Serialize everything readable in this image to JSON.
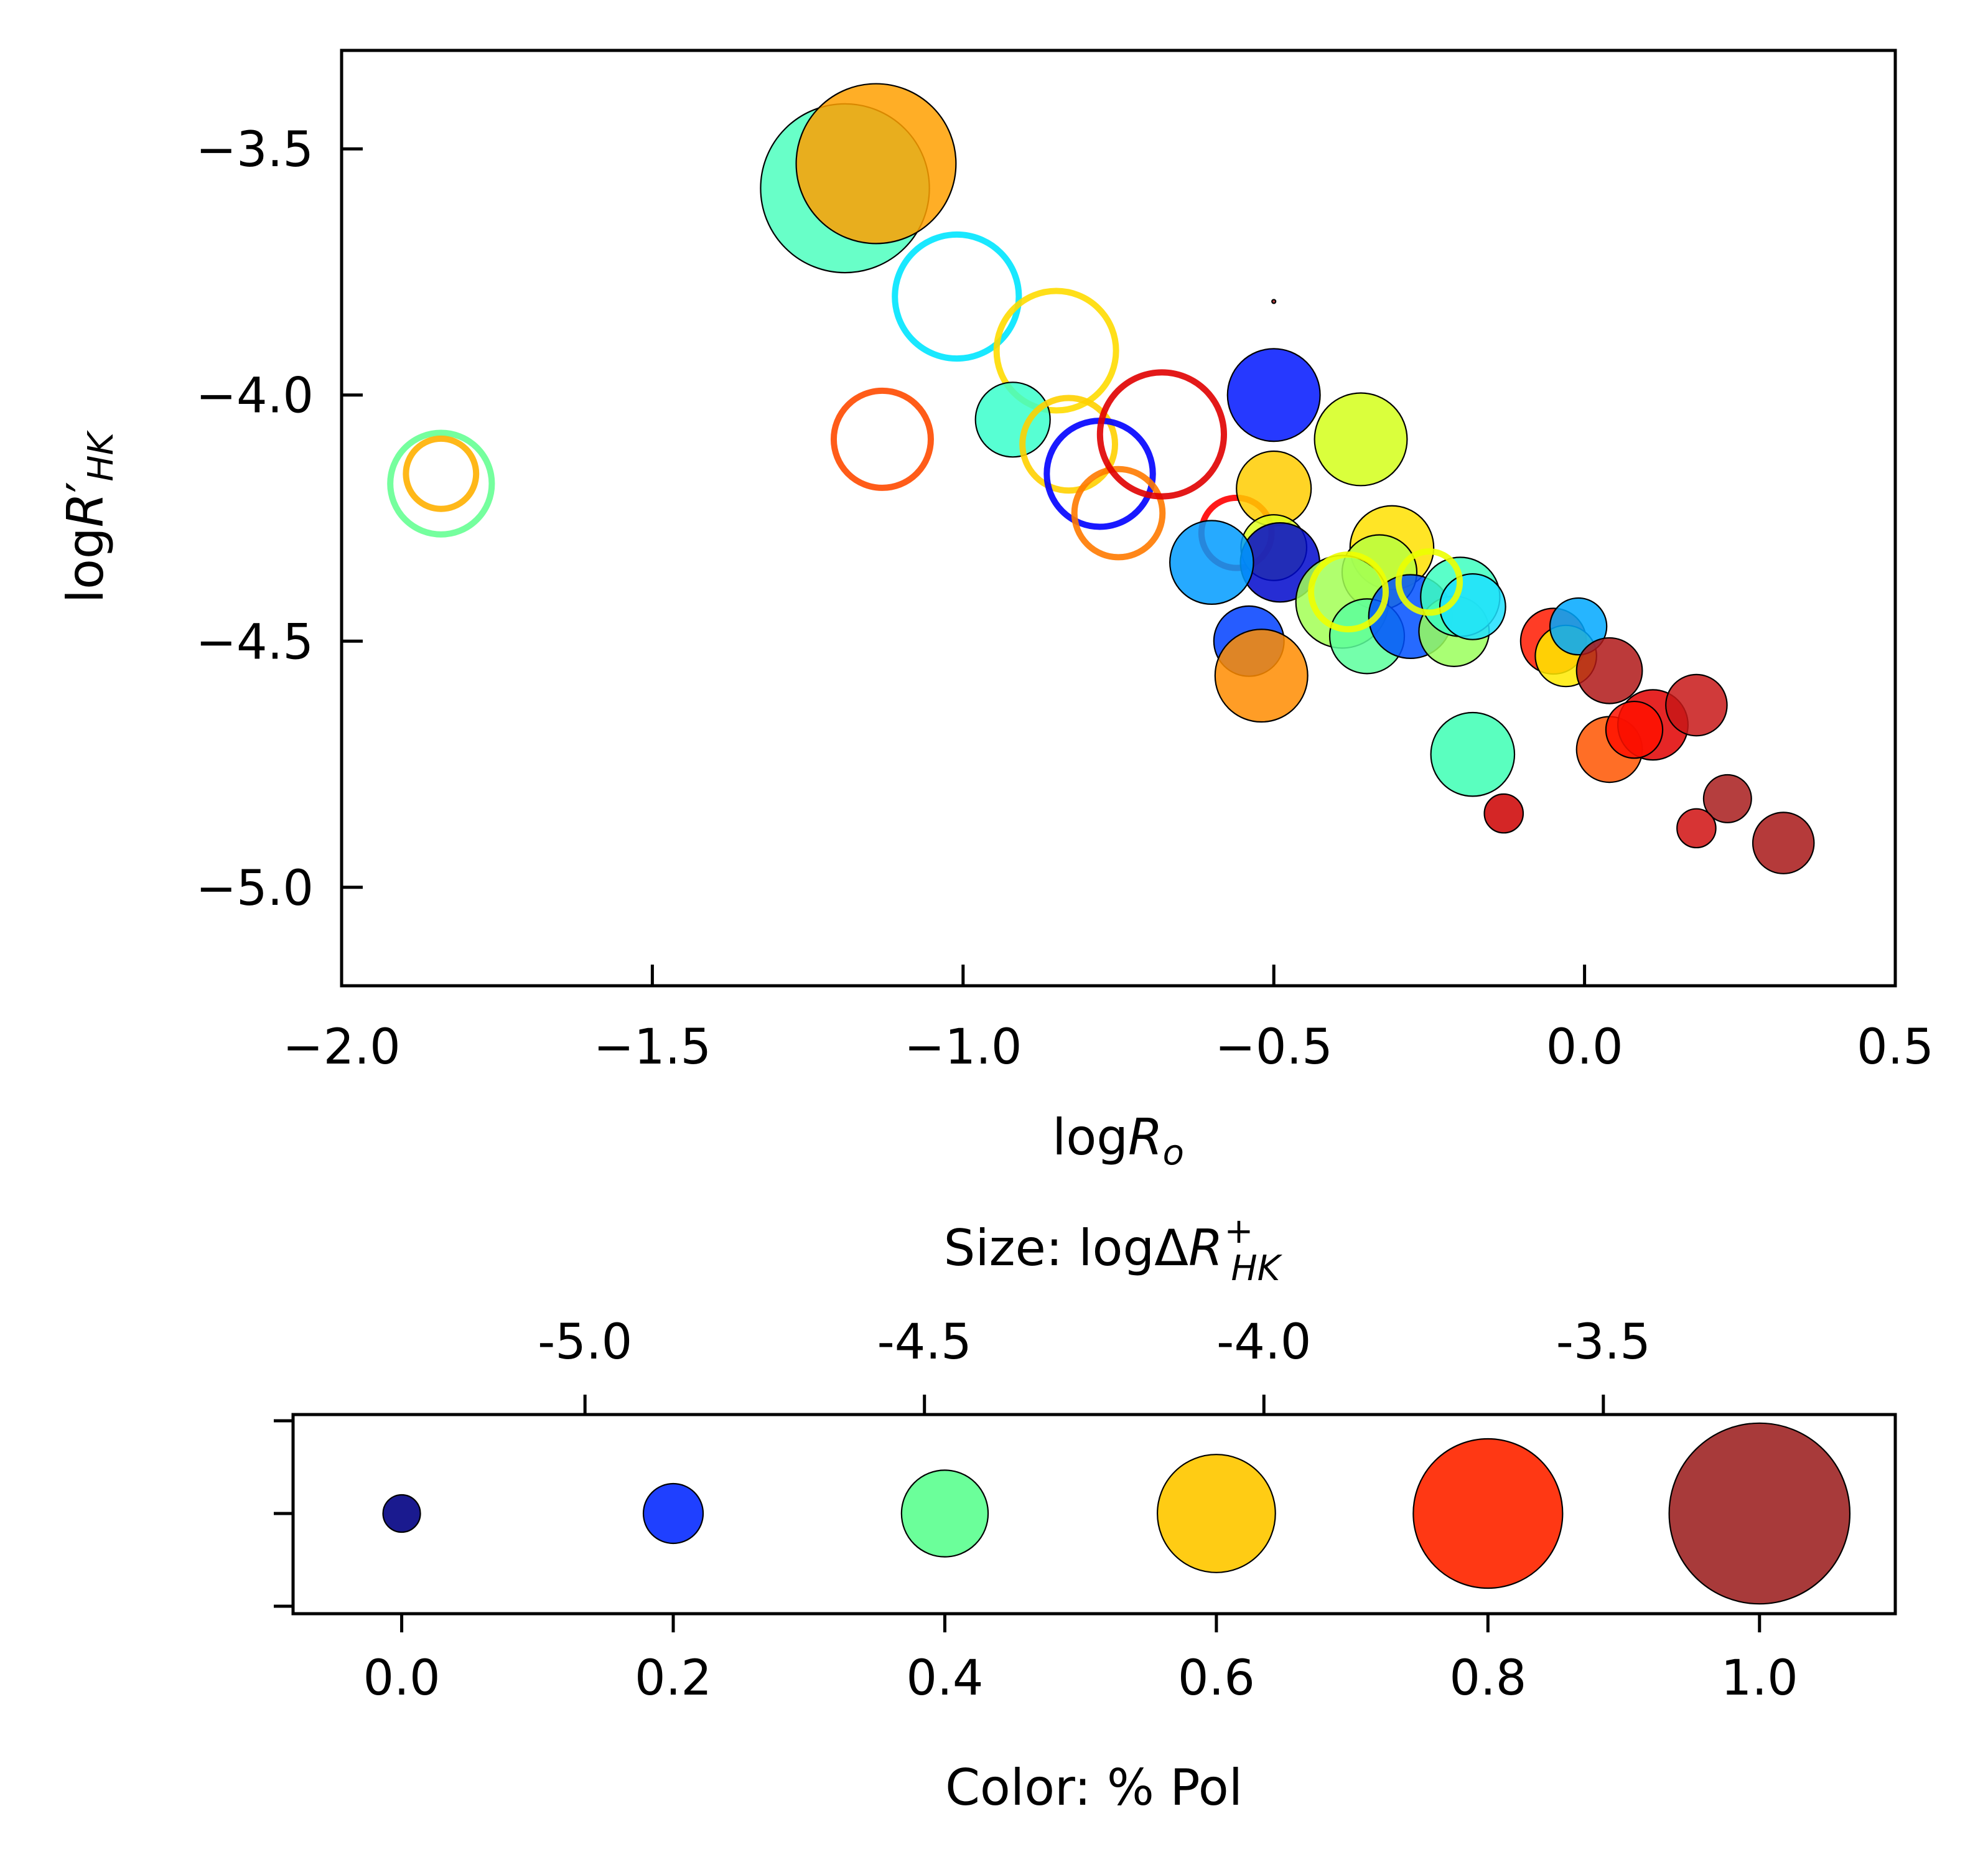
{
  "chart_data": [
    {
      "type": "scatter",
      "xlabel": "logR_o",
      "ylabel": "logR'_HK",
      "xlim": [
        -2.0,
        0.5
      ],
      "ylim": [
        -5.2,
        -3.3
      ],
      "xticks": [
        "−2.0",
        "−1.5",
        "−1.0",
        "−0.5",
        "0.0",
        "0.5"
      ],
      "xtick_values": [
        -2.0,
        -1.5,
        -1.0,
        -0.5,
        0.0,
        0.5
      ],
      "yticks": [
        "−3.5",
        "−4.0",
        "−4.5",
        "−5.0"
      ],
      "ytick_values": [
        -3.5,
        -4.0,
        -4.5,
        -5.0
      ],
      "size_encoding": "logDeltaR+_HK",
      "color_encoding": "% Pol",
      "points": [
        {
          "x": -1.19,
          "y": -3.58,
          "size": -3.45,
          "color": "#4dffbe",
          "filled": true
        },
        {
          "x": -1.14,
          "y": -3.53,
          "size": -3.55,
          "color": "#ffa000",
          "filled": true
        },
        {
          "x": -1.01,
          "y": -3.8,
          "size": -3.95,
          "color": "#00e5ff",
          "filled": false
        },
        {
          "x": -0.85,
          "y": -3.91,
          "size": -4.0,
          "color": "#ffdc00",
          "filled": false
        },
        {
          "x": -0.92,
          "y": -4.05,
          "size": -4.5,
          "color": "#3affcb",
          "filled": true
        },
        {
          "x": -0.83,
          "y": -4.1,
          "size": -4.3,
          "color": "#ffd000",
          "filled": false
        },
        {
          "x": -0.78,
          "y": -4.16,
          "size": -4.15,
          "color": "#0000ff",
          "filled": false
        },
        {
          "x": -0.75,
          "y": -4.24,
          "size": -4.35,
          "color": "#ff7a00",
          "filled": false
        },
        {
          "x": -1.13,
          "y": -4.09,
          "size": -4.25,
          "color": "#ff4a00",
          "filled": false
        },
        {
          "x": -0.68,
          "y": -4.08,
          "size": -3.95,
          "color": "#e00000",
          "filled": false
        },
        {
          "x": -0.56,
          "y": -4.28,
          "size": -4.55,
          "color": "#ff0000",
          "filled": false
        },
        {
          "x": -1.84,
          "y": -4.18,
          "size": -4.2,
          "color": "#66ff94",
          "filled": false
        },
        {
          "x": -1.84,
          "y": -4.16,
          "size": -4.55,
          "color": "#ffb000",
          "filled": false
        },
        {
          "x": -0.5,
          "y": -3.81,
          "size": -5.4,
          "color": "#b22222",
          "filled": true
        },
        {
          "x": -0.5,
          "y": -4.0,
          "size": -4.3,
          "color": "#0016ff",
          "filled": true
        },
        {
          "x": -0.36,
          "y": -4.09,
          "size": -4.3,
          "color": "#d4ff1a",
          "filled": true
        },
        {
          "x": -0.5,
          "y": -4.19,
          "size": -4.5,
          "color": "#ffcc00",
          "filled": true
        },
        {
          "x": -0.5,
          "y": -4.31,
          "size": -4.6,
          "color": "#e0ff20",
          "filled": true
        },
        {
          "x": -0.49,
          "y": -4.34,
          "size": -4.45,
          "color": "#0008cc",
          "filled": true
        },
        {
          "x": -0.6,
          "y": -4.34,
          "size": -4.4,
          "color": "#009bff",
          "filled": true
        },
        {
          "x": -0.54,
          "y": -4.5,
          "size": -4.55,
          "color": "#0040ff",
          "filled": true
        },
        {
          "x": -0.52,
          "y": -4.57,
          "size": -4.3,
          "color": "#ff8c00",
          "filled": true
        },
        {
          "x": -0.31,
          "y": -4.31,
          "size": -4.4,
          "color": "#ffe000",
          "filled": true
        },
        {
          "x": -0.33,
          "y": -4.36,
          "size": -4.5,
          "color": "#b8ff40",
          "filled": true
        },
        {
          "x": -0.39,
          "y": -4.42,
          "size": -4.3,
          "color": "#a2ff55",
          "filled": true
        },
        {
          "x": -0.35,
          "y": -4.49,
          "size": -4.5,
          "color": "#5cff9c",
          "filled": true
        },
        {
          "x": -0.28,
          "y": -4.45,
          "size": -4.4,
          "color": "#0050ff",
          "filled": true
        },
        {
          "x": -0.21,
          "y": -4.48,
          "size": -4.55,
          "color": "#9aff5c",
          "filled": true
        },
        {
          "x": -0.2,
          "y": -4.41,
          "size": -4.45,
          "color": "#3dffc0",
          "filled": true
        },
        {
          "x": -0.18,
          "y": -4.43,
          "size": -4.6,
          "color": "#1de0ff",
          "filled": true
        },
        {
          "x": -0.38,
          "y": -4.4,
          "size": -4.5,
          "color": "#f0ff00",
          "filled": false
        },
        {
          "x": -0.25,
          "y": -4.38,
          "size": -4.65,
          "color": "#ecff00",
          "filled": false
        },
        {
          "x": -0.18,
          "y": -4.73,
          "size": -4.4,
          "color": "#3dffb4",
          "filled": true
        },
        {
          "x": -0.13,
          "y": -4.85,
          "size": -4.9,
          "color": "#cc0000",
          "filled": true
        },
        {
          "x": -0.05,
          "y": -4.5,
          "size": -4.6,
          "color": "#ff1a00",
          "filled": true
        },
        {
          "x": -0.03,
          "y": -4.53,
          "size": -4.65,
          "color": "#ffea00",
          "filled": true
        },
        {
          "x": -0.01,
          "y": -4.47,
          "size": -4.7,
          "color": "#00a8ff",
          "filled": true
        },
        {
          "x": 0.04,
          "y": -4.56,
          "size": -4.6,
          "color": "#b01818",
          "filled": true
        },
        {
          "x": 0.04,
          "y": -4.72,
          "size": -4.6,
          "color": "#ff5500",
          "filled": true
        },
        {
          "x": 0.11,
          "y": -4.67,
          "size": -4.55,
          "color": "#e00000",
          "filled": true
        },
        {
          "x": 0.08,
          "y": -4.68,
          "size": -4.7,
          "color": "#ff1000",
          "filled": true
        },
        {
          "x": 0.18,
          "y": -4.63,
          "size": -4.65,
          "color": "#c81818",
          "filled": true
        },
        {
          "x": 0.23,
          "y": -4.82,
          "size": -4.8,
          "color": "#a81c1c",
          "filled": true
        },
        {
          "x": 0.18,
          "y": -4.88,
          "size": -4.9,
          "color": "#d01010",
          "filled": true
        },
        {
          "x": 0.32,
          "y": -4.91,
          "size": -4.65,
          "color": "#a81818",
          "filled": true
        }
      ]
    },
    {
      "type": "scatter",
      "title": "Size: logΔR+_HK",
      "xlabel": "Color: % Pol",
      "xlim": [
        -0.08,
        1.1
      ],
      "xticks": [
        "0.0",
        "0.2",
        "0.4",
        "0.6",
        "0.8",
        "1.0"
      ],
      "xtick_values": [
        0.0,
        0.2,
        0.4,
        0.6,
        0.8,
        1.0
      ],
      "top_ticks": [
        "-5.0",
        "-4.5",
        "-4.0",
        "-3.5"
      ],
      "top_tick_values": [
        -5.0,
        -4.5,
        -4.0,
        -3.5
      ],
      "top_tick_positions_in_x_units": [
        0.135,
        0.385,
        0.635,
        0.885
      ],
      "legend_points": [
        {
          "x": 0.0,
          "size_value": -5.0,
          "color": "#1a1a8f"
        },
        {
          "x": 0.2,
          "size_value": -4.75,
          "color": "#1f40ff"
        },
        {
          "x": 0.4,
          "size_value": -4.45,
          "color": "#6bff9a"
        },
        {
          "x": 0.6,
          "size_value": -4.1,
          "color": "#ffcc14"
        },
        {
          "x": 0.8,
          "size_value": -3.75,
          "color": "#ff3814"
        },
        {
          "x": 1.0,
          "size_value": -3.4,
          "color": "#a83a3a"
        }
      ]
    }
  ]
}
